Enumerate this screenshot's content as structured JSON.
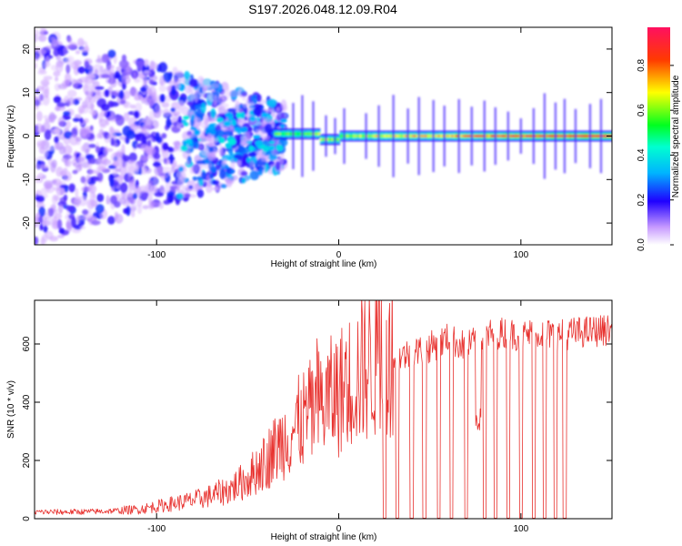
{
  "title": "S197.2026.048.12.09.R04",
  "chart_data": [
    {
      "type": "heatmap",
      "name": "spectrogram",
      "xlabel": "Height of straight line (km)",
      "ylabel": "Frequency (Hz)",
      "xlim": [
        -167,
        150
      ],
      "ylim": [
        -25,
        25
      ],
      "xticks": [
        -100,
        0,
        100
      ],
      "yticks": [
        -20,
        -10,
        0,
        10,
        20
      ],
      "colorbar": {
        "label": "Normalized spectral amplitude",
        "range": [
          0,
          0.97
        ],
        "ticks": [
          0.0,
          0.2,
          0.4,
          0.6,
          0.8
        ]
      },
      "features": {
        "tone_frequency_hz": 0,
        "tone_start_km": -35,
        "noise_region_km": [
          -167,
          -35
        ]
      }
    },
    {
      "type": "line",
      "name": "snr",
      "xlabel": "Height of straight line (km)",
      "ylabel": "SNR (10 * v/v)",
      "xlim": [
        -167,
        150
      ],
      "ylim": [
        0,
        750
      ],
      "xticks": [
        -100,
        0,
        100
      ],
      "yticks": [
        0,
        200,
        400,
        600
      ],
      "color": "#e8322f",
      "x": [
        -167,
        -150,
        -130,
        -110,
        -100,
        -90,
        -80,
        -70,
        -60,
        -50,
        -40,
        -30,
        -20,
        -10,
        -5,
        0,
        10,
        20,
        30,
        40,
        50,
        60,
        70,
        80,
        90,
        100,
        110,
        120,
        130,
        140,
        150
      ],
      "values": [
        22,
        22,
        24,
        30,
        40,
        50,
        60,
        75,
        95,
        130,
        190,
        260,
        320,
        370,
        390,
        410,
        470,
        520,
        560,
        580,
        600,
        630,
        600,
        640,
        650,
        640,
        650,
        640,
        650,
        655,
        660
      ],
      "dropouts_km": [
        25,
        32,
        40,
        47,
        55,
        62,
        70,
        80,
        86,
        93,
        100,
        107,
        113,
        119,
        124
      ]
    }
  ]
}
